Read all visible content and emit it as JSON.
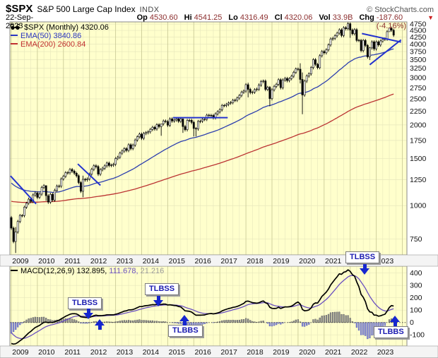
{
  "header": {
    "symbol": "$SPX",
    "name": "S&P 500 Large Cap Index",
    "exchange": "INDX",
    "credit": "© StockCharts.com",
    "date": "22-Sep-2023",
    "quote": {
      "op_label": "Op",
      "op": "4530.60",
      "hi_label": "Hi",
      "hi": "4541.25",
      "lo_label": "Lo",
      "lo": "4316.49",
      "cl_label": "Cl",
      "cl": "4320.06",
      "vol_label": "Vol",
      "vol": "33.9B",
      "chg_label": "Chg",
      "chg": "-187.60 (-4.16%)",
      "chg_direction": "down"
    }
  },
  "legend": {
    "main": "$SPX (Monthly) 4320.06",
    "ema50": "EMA(50) 3840.86",
    "ema200": "EMA(200) 2600.84"
  },
  "macd_legend": {
    "p1": "MACD(12,26,9) 132.895,",
    "p2": "111.678,",
    "p3": "21.216"
  },
  "annotations": {
    "b1": {
      "label": "TLBSS"
    },
    "b2": {
      "label": "TLBSS"
    },
    "b3": {
      "label": "TLBBS"
    },
    "b4": {
      "label": "TLBSS"
    },
    "b5": {
      "label": "TLBBS"
    }
  },
  "colors": {
    "plot_bg": "#FFFFCC",
    "border": "#888888",
    "grid": "#E7E7BC",
    "grid_year": "#CCCC99",
    "bar": "#000000",
    "ema50": "#2d3fae",
    "ema200": "#bb3333",
    "trendline": "#2433cf",
    "macd_line": "#000000",
    "macd_signal": "#6a4fc0",
    "hist_pos_fill": "#909090",
    "hist_pos_stroke": "#606060",
    "hist_neg_fill": "#9195d2",
    "hist_neg_stroke": "#5157b8",
    "strip_bg": "#f4f4f4",
    "axis_text": "#111111",
    "arrow_blue": "#1626cf"
  },
  "chart_data": {
    "type": "candlestick",
    "symbol": "$SPX",
    "timeframe": "Monthly",
    "scale": "log",
    "start_month": "2009-01",
    "end_month": "2023-09",
    "prev_close": 903,
    "close": [
      825,
      735,
      798,
      873,
      919,
      919,
      987,
      1021,
      1057,
      1036,
      1096,
      1115,
      1074,
      1104,
      1169,
      1187,
      1089,
      1031,
      1102,
      1049,
      1141,
      1183,
      1181,
      1258,
      1286,
      1327,
      1326,
      1364,
      1345,
      1321,
      1292,
      1219,
      1131,
      1253,
      1247,
      1258,
      1312,
      1366,
      1408,
      1398,
      1310,
      1362,
      1379,
      1407,
      1441,
      1412,
      1416,
      1426,
      1498,
      1515,
      1569,
      1598,
      1631,
      1606,
      1686,
      1633,
      1682,
      1757,
      1806,
      1848,
      1783,
      1859,
      1872,
      1884,
      1924,
      1960,
      1931,
      2003,
      1972,
      2018,
      2068,
      2059,
      1995,
      2105,
      2068,
      2086,
      2107,
      2063,
      2104,
      1972,
      1920,
      2079,
      2080,
      2044,
      1940,
      1932,
      2060,
      2065,
      2097,
      2099,
      2174,
      2171,
      2168,
      2126,
      2199,
      2239,
      2279,
      2364,
      2363,
      2384,
      2412,
      2423,
      2470,
      2472,
      2519,
      2575,
      2648,
      2674,
      2824,
      2714,
      2641,
      2648,
      2705,
      2718,
      2816,
      2902,
      2914,
      2712,
      2760,
      2507,
      2704,
      2784,
      2834,
      2946,
      2752,
      2942,
      2980,
      2926,
      2977,
      3038,
      3141,
      3231,
      3226,
      2954,
      2585,
      2912,
      3044,
      3100,
      3271,
      3500,
      3363,
      3270,
      3622,
      3756,
      3714,
      3811,
      3973,
      4181,
      4204,
      4298,
      4395,
      4523,
      4308,
      4605,
      4567,
      4766,
      4516,
      4374,
      4530,
      4132,
      4132,
      3785,
      4130,
      3955,
      3586,
      3872,
      4080,
      3840,
      4077,
      3970,
      4109,
      4169,
      4180,
      4450,
      4589,
      4508,
      4320
    ],
    "wick_overrides": {
      "2": [
        666,
        832
      ],
      "16": [
        1041,
        1174
      ],
      "33": [
        1075,
        1293
      ],
      "69": [
        1821,
        2019
      ],
      "79": [
        1867,
        2113
      ],
      "84": [
        1812,
        2072
      ],
      "85": [
        1810,
        1963
      ],
      "109": [
        2533,
        2873
      ],
      "119": [
        2347,
        2790
      ],
      "133": [
        2855,
        3393
      ],
      "134": [
        2192,
        3137
      ],
      "156": [
        4223,
        4818
      ],
      "165": [
        3491,
        3905
      ],
      "174": [
        4528,
        4607
      ]
    },
    "indicators": {
      "ema50_seed": 1230,
      "ema200_seed": 1040,
      "macd": {
        "ema12_seed": 980,
        "ema26_seed": 1150,
        "signal_seed": -60
      }
    },
    "last_values": {
      "close": 4320.06,
      "ema50": 3840.86,
      "ema200": 2600.84,
      "macd": 132.895,
      "signal": 111.678,
      "hist": 21.216
    },
    "y_axis_ticks": [
      750,
      1000,
      1250,
      1500,
      1750,
      2000,
      2250,
      2500,
      2750,
      3000,
      3250,
      3500,
      3750,
      4000,
      4250,
      4500,
      4750
    ],
    "macd_axis_ticks": [
      -100,
      0,
      100,
      200,
      300,
      400
    ],
    "x_labels": [
      "2009",
      "2010",
      "2011",
      "2012",
      "2013",
      "2014",
      "2015",
      "2016",
      "2017",
      "2018",
      "2019",
      "2020",
      "2021",
      "2022",
      "2023"
    ],
    "trendlines": [
      {
        "t1": 2008.97,
        "p1": 1290,
        "t2": 2009.95,
        "p2": 1015
      },
      {
        "t1": 2011.55,
        "p1": 1430,
        "t2": 2012.42,
        "p2": 1190
      },
      {
        "t1": 2015.2,
        "p1": 2128,
        "t2": 2017.3,
        "p2": 2128
      },
      {
        "t1": 2022.45,
        "p1": 4380,
        "t2": 2023.95,
        "p2": 4070
      },
      {
        "t1": 2022.75,
        "p1": 3350,
        "t2": 2023.95,
        "p2": 4150
      }
    ]
  }
}
